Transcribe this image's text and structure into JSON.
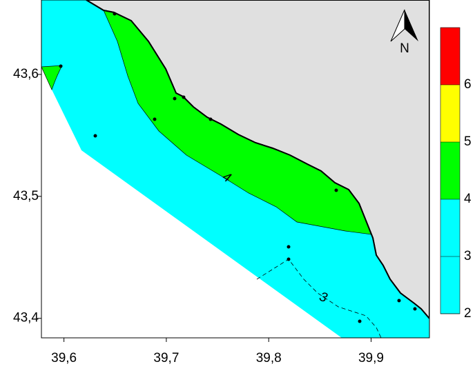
{
  "map": {
    "xlim": [
      39.578,
      39.957
    ],
    "ylim": [
      43.384,
      43.661
    ],
    "xticks": [
      {
        "value": 39.6,
        "label": "39,6"
      },
      {
        "value": 39.7,
        "label": "39,7"
      },
      {
        "value": 39.8,
        "label": "39,8"
      },
      {
        "value": 39.9,
        "label": "39,9"
      }
    ],
    "yticks": [
      {
        "value": 43.4,
        "label": "43,4"
      },
      {
        "value": 43.5,
        "label": "43,5"
      },
      {
        "value": 43.6,
        "label": "43,6"
      }
    ],
    "north_label": "N",
    "contour_labels": [
      "4",
      "3"
    ],
    "colorbar": {
      "lim": [
        2,
        7
      ],
      "ticks": [
        2,
        3,
        4,
        5,
        6
      ],
      "bands": [
        {
          "from": 2,
          "to": 4,
          "color": "#00ffff"
        },
        {
          "from": 4,
          "to": 5,
          "color": "#00ff00"
        },
        {
          "from": 5,
          "to": 6,
          "color": "#ffff00"
        },
        {
          "from": 6,
          "to": 7,
          "color": "#ff0000"
        }
      ]
    }
  }
}
